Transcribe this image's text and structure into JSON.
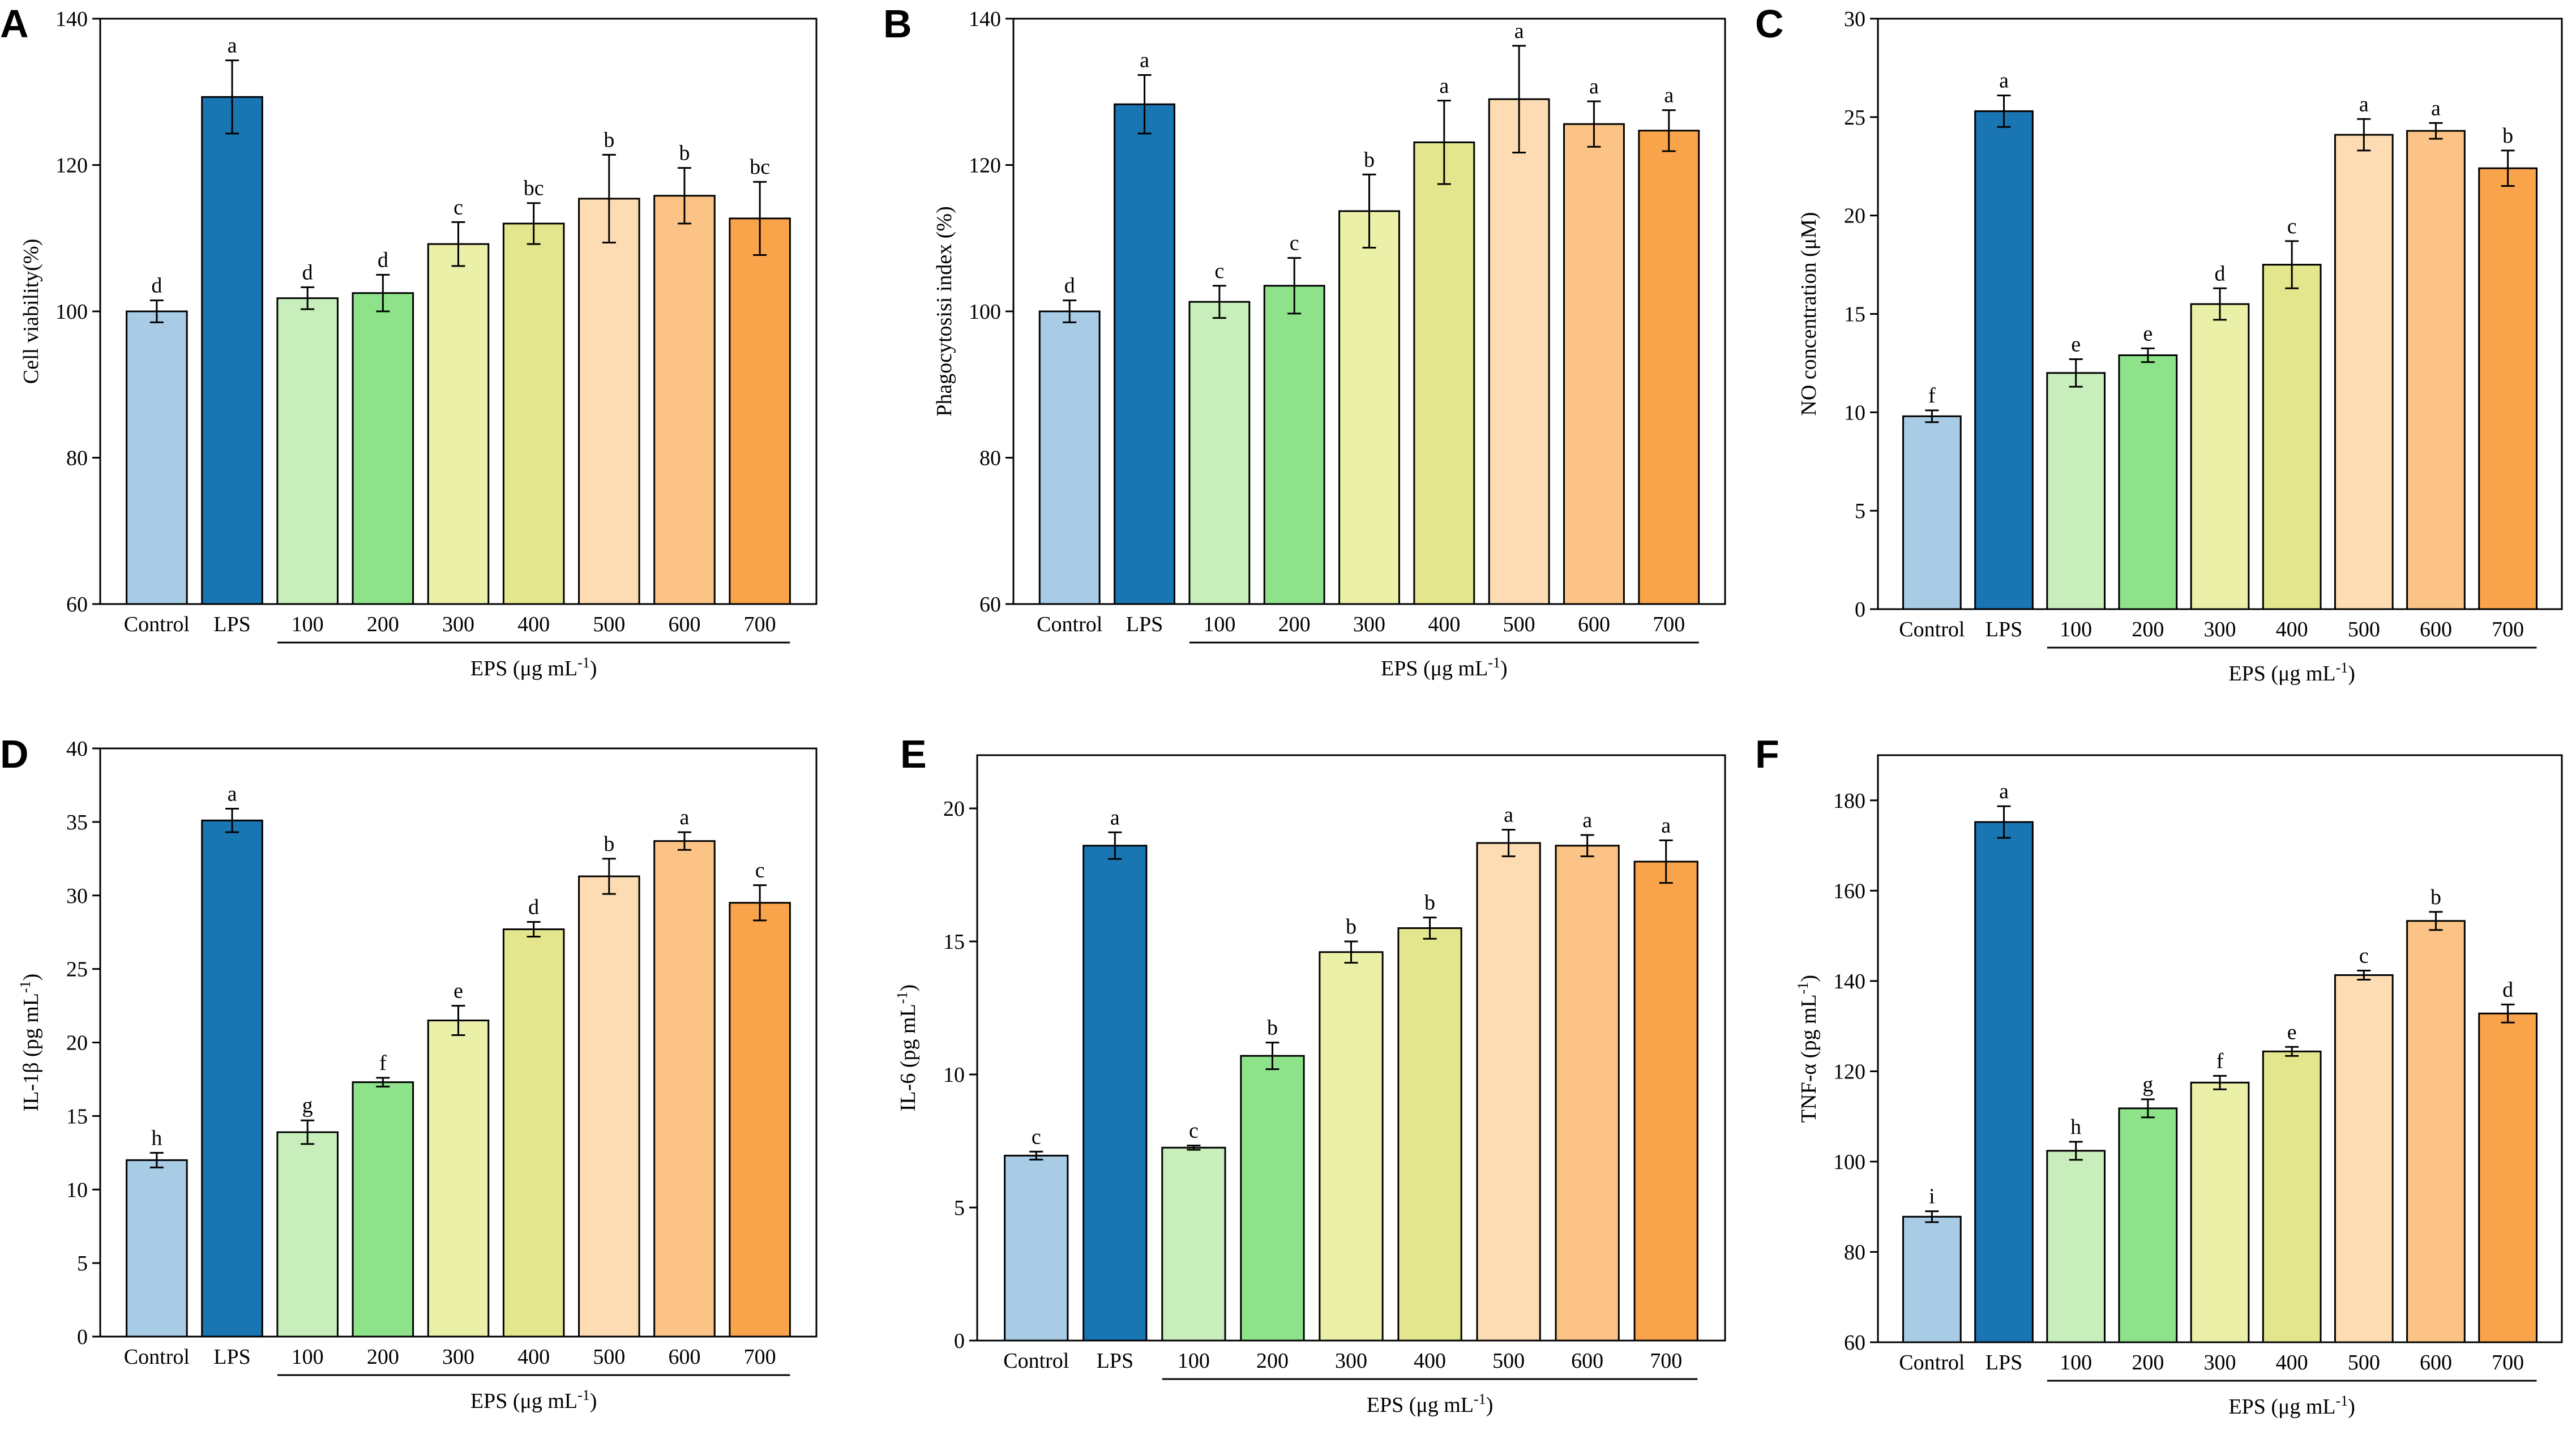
{
  "figure": {
    "categories": [
      "Control",
      "LPS",
      "100",
      "200",
      "300",
      "400",
      "500",
      "600",
      "700"
    ],
    "group_label_prefix": "EPS (μg mL",
    "group_label_sup": "-1",
    "group_label_suffix": ")",
    "bar_colors": [
      "#a8cbe6",
      "#1a75b3",
      "#c8eebc",
      "#8ee38a",
      "#ebf0a8",
      "#e4e68d",
      "#fddcb4",
      "#fbc386",
      "#f9a44b"
    ]
  },
  "chart_data": [
    {
      "panel": "A",
      "type": "bar",
      "ylabel": "Cell viability(%)",
      "ylim": [
        60,
        140
      ],
      "yticks": [
        60,
        80,
        100,
        120,
        140
      ],
      "values": [
        100,
        129.3,
        101.8,
        102.5,
        109.2,
        112.0,
        115.4,
        115.8,
        112.7
      ],
      "errors": [
        1.5,
        5.0,
        1.5,
        2.5,
        3.0,
        2.8,
        6.0,
        3.8,
        5.0
      ],
      "letters": [
        "d",
        "a",
        "d",
        "d",
        "c",
        "bc",
        "b",
        "b",
        "bc"
      ]
    },
    {
      "panel": "B",
      "type": "bar",
      "ylabel": "Phagocytosisi index (%)",
      "ylim": [
        60,
        140
      ],
      "yticks": [
        60,
        80,
        100,
        120,
        140
      ],
      "values": [
        100,
        128.3,
        101.3,
        103.5,
        113.7,
        123.1,
        129.0,
        125.6,
        124.7
      ],
      "errors": [
        1.5,
        4.0,
        2.2,
        3.8,
        5.0,
        5.7,
        7.3,
        3.1,
        2.8
      ],
      "letters": [
        "d",
        "a",
        "c",
        "c",
        "b",
        "a",
        "a",
        "a",
        "a"
      ]
    },
    {
      "panel": "C",
      "type": "bar",
      "ylabel": "NO concentration (μM)",
      "ylim": [
        0,
        30
      ],
      "yticks": [
        0,
        5,
        10,
        15,
        20,
        25,
        30
      ],
      "values": [
        9.8,
        25.3,
        12.0,
        12.9,
        15.5,
        17.5,
        24.1,
        24.3,
        22.4
      ],
      "errors": [
        0.3,
        0.8,
        0.7,
        0.35,
        0.8,
        1.2,
        0.8,
        0.4,
        0.9
      ],
      "letters": [
        "f",
        "a",
        "e",
        "e",
        "d",
        "c",
        "a",
        "a",
        "b"
      ]
    },
    {
      "panel": "D",
      "type": "bar",
      "ylabel_prefix": "IL-1β (pg mL",
      "ylabel_sup": "-1",
      "ylabel_suffix": ")",
      "ylim": [
        0,
        40
      ],
      "yticks": [
        0,
        5,
        10,
        15,
        20,
        25,
        30,
        35,
        40
      ],
      "values": [
        12.0,
        35.1,
        13.9,
        17.3,
        21.5,
        27.7,
        31.3,
        33.7,
        29.5
      ],
      "errors": [
        0.5,
        0.8,
        0.8,
        0.3,
        1.0,
        0.5,
        1.2,
        0.6,
        1.2
      ],
      "letters": [
        "h",
        "a",
        "g",
        "f",
        "e",
        "d",
        "b",
        "a",
        "c"
      ]
    },
    {
      "panel": "E",
      "type": "bar",
      "ylabel_prefix": "IL-6 (pg mL",
      "ylabel_sup": "-1",
      "ylabel_suffix": ")",
      "ylim": [
        0,
        22
      ],
      "yticks": [
        0,
        5,
        10,
        15,
        20
      ],
      "values": [
        6.95,
        18.6,
        7.25,
        10.7,
        14.6,
        15.5,
        18.7,
        18.6,
        18.0
      ],
      "errors": [
        0.15,
        0.5,
        0.08,
        0.5,
        0.4,
        0.4,
        0.5,
        0.4,
        0.8
      ],
      "letters": [
        "c",
        "a",
        "c",
        "b",
        "b",
        "b",
        "a",
        "a",
        "a"
      ]
    },
    {
      "panel": "F",
      "type": "bar",
      "ylabel_prefix": "TNF-α (pg mL",
      "ylabel_sup": "-1",
      "ylabel_suffix": ")",
      "ylim": [
        60,
        190
      ],
      "yticks": [
        60,
        80,
        100,
        120,
        140,
        160,
        180
      ],
      "values": [
        87.8,
        175.2,
        102.4,
        111.8,
        117.5,
        124.4,
        141.3,
        153.3,
        132.8
      ],
      "errors": [
        1.2,
        3.5,
        2.0,
        2.0,
        1.5,
        1.0,
        1.0,
        2.0,
        2.0
      ],
      "letters": [
        "i",
        "a",
        "h",
        "g",
        "f",
        "e",
        "c",
        "b",
        "d"
      ]
    }
  ]
}
